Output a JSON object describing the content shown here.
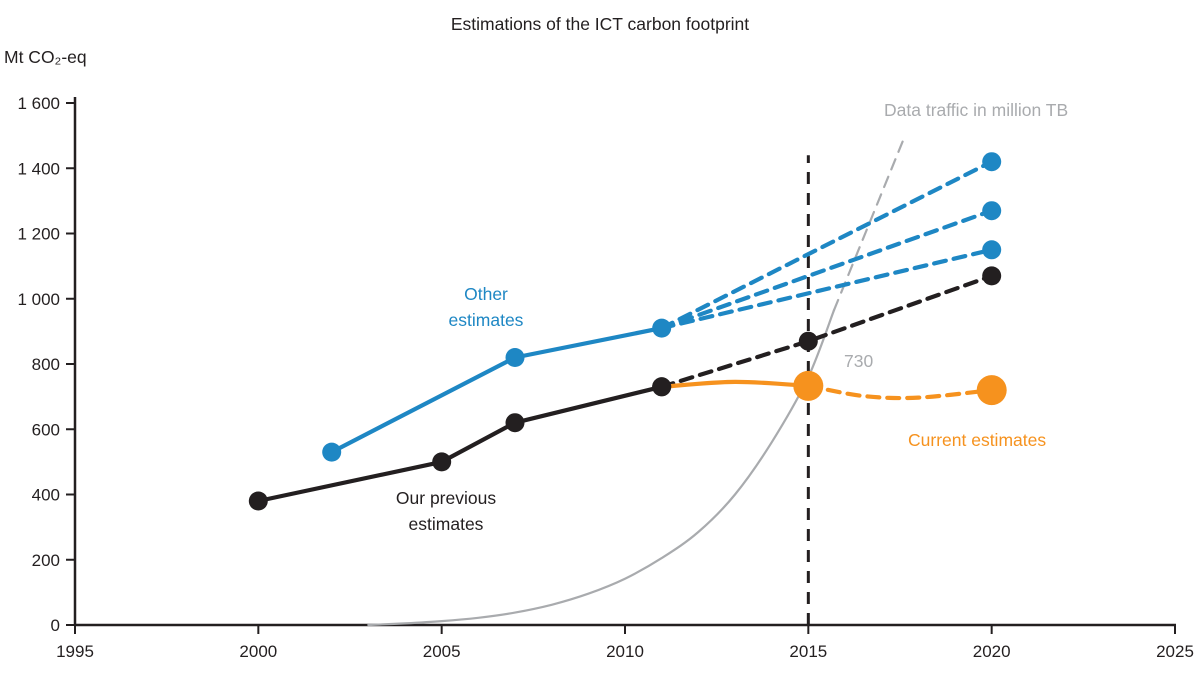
{
  "title": "Estimations of the ICT carbon footprint",
  "y_axis_unit": "Mt CO₂-eq",
  "annotations": {
    "other_estimates": "Other\nestimates",
    "our_previous_estimates": "Our previous\nestimates",
    "current_estimates": "Current estimates",
    "data_traffic": "Data traffic in million TB",
    "traffic_crossing_value": "730"
  },
  "colors": {
    "black": "#231f20",
    "blue": "#1e87c4",
    "orange": "#f6921e",
    "gray": "#a9abae",
    "axis": "#231f20"
  },
  "chart_data": {
    "type": "line",
    "title": "Estimations of the ICT carbon footprint",
    "xlabel": "",
    "ylabel": "Mt CO₂-eq",
    "xlim": [
      1995,
      2025
    ],
    "ylim": [
      0,
      1600
    ],
    "grid": false,
    "x_ticks": [
      1995,
      2000,
      2005,
      2010,
      2015,
      2020,
      2025
    ],
    "x_tick_labels": [
      "1995",
      "2000",
      "2005",
      "2010",
      "2015",
      "2020",
      "2025"
    ],
    "y_ticks": [
      0,
      200,
      400,
      600,
      800,
      1000,
      1200,
      1400,
      1600
    ],
    "y_tick_labels": [
      "0",
      "200",
      "400",
      "600",
      "800",
      "1 000",
      "1 200",
      "1 400",
      "1 600"
    ],
    "vline": {
      "x": 2015,
      "y_from": 0,
      "y_to": 1440,
      "color": "black",
      "width": 3,
      "dash": "12 9"
    },
    "series": [
      {
        "name": "Data traffic in million TB (observed)",
        "color": "gray",
        "dash": null,
        "width": 2.2,
        "smooth": true,
        "markers": "none",
        "points": [
          [
            2003,
            0
          ],
          [
            2004,
            5
          ],
          [
            2005,
            12
          ],
          [
            2006,
            22
          ],
          [
            2007,
            38
          ],
          [
            2008,
            62
          ],
          [
            2009,
            96
          ],
          [
            2010,
            142
          ],
          [
            2011,
            205
          ],
          [
            2012,
            285
          ],
          [
            2013,
            400
          ],
          [
            2014,
            560
          ],
          [
            2015,
            760
          ],
          [
            2015.7,
            965
          ]
        ]
      },
      {
        "name": "Data traffic in million TB (projected)",
        "color": "gray",
        "dash": "11 8",
        "width": 2.2,
        "smooth": false,
        "markers": "none",
        "points": [
          [
            2015.7,
            965
          ],
          [
            2017.6,
            1490
          ]
        ]
      },
      {
        "name": "Other estimates projection (high)",
        "color": "blue",
        "dash": "12 8",
        "width": 4.2,
        "markers": "end",
        "marker_r": 9.5,
        "points": [
          [
            2011,
            910
          ],
          [
            2020,
            1420
          ]
        ]
      },
      {
        "name": "Other estimates projection (mid)",
        "color": "blue",
        "dash": "12 8",
        "width": 4.2,
        "markers": "end",
        "marker_r": 9.5,
        "points": [
          [
            2011,
            910
          ],
          [
            2020,
            1270
          ]
        ]
      },
      {
        "name": "Other estimates projection (low)",
        "color": "blue",
        "dash": "12 8",
        "width": 4.2,
        "markers": "end",
        "marker_r": 9.5,
        "points": [
          [
            2011,
            910
          ],
          [
            2020,
            1150
          ]
        ]
      },
      {
        "name": "Our previous estimates projection",
        "color": "black",
        "dash": "12 8",
        "width": 4.2,
        "markers": "all",
        "marker_r": 9.5,
        "points": [
          [
            2011,
            730
          ],
          [
            2015,
            870
          ],
          [
            2020,
            1070
          ]
        ]
      },
      {
        "name": "Other estimates",
        "color": "blue",
        "dash": null,
        "width": 4.2,
        "markers": "all",
        "marker_r": 9.5,
        "points": [
          [
            2002,
            530
          ],
          [
            2007,
            820
          ],
          [
            2011,
            910
          ]
        ]
      },
      {
        "name": "Our previous estimates",
        "color": "black",
        "dash": null,
        "width": 4.2,
        "markers": "all",
        "marker_r": 9.5,
        "points": [
          [
            2000,
            380
          ],
          [
            2005,
            500
          ],
          [
            2007,
            620
          ],
          [
            2011,
            730
          ]
        ]
      },
      {
        "name": "Current estimates",
        "color": "orange",
        "dash": null,
        "width": 4.2,
        "smooth": true,
        "markers": "end",
        "marker_r": 15,
        "points": [
          [
            2011,
            730
          ],
          [
            2013,
            745
          ],
          [
            2015,
            733
          ]
        ]
      },
      {
        "name": "Current estimates projection",
        "color": "orange",
        "dash": "12 8",
        "width": 4.2,
        "smooth": true,
        "markers": "end",
        "marker_r": 15,
        "points": [
          [
            2015,
            733
          ],
          [
            2016.5,
            702
          ],
          [
            2018,
            697
          ],
          [
            2020,
            720
          ]
        ]
      }
    ]
  }
}
